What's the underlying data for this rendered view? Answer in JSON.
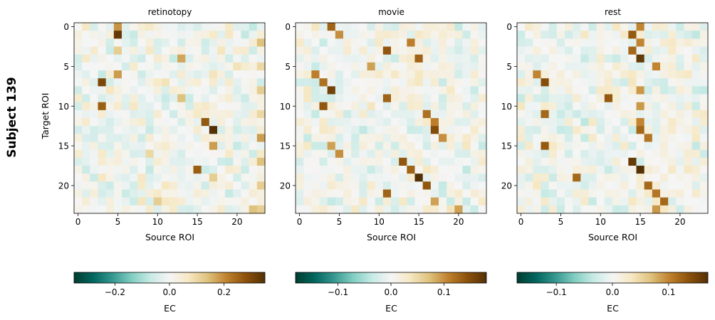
{
  "figure": {
    "row_label": "Subject 139",
    "ylabel": "Target ROI",
    "xlabel": "Source ROI",
    "colorbar_label": "EC"
  },
  "colormap": {
    "name": "BrBG_r",
    "stops": [
      "#003c30",
      "#01665e",
      "#35978f",
      "#80cdc1",
      "#c7eae5",
      "#f5f5f5",
      "#f6e8c3",
      "#dfc27d",
      "#bf812d",
      "#8c510a",
      "#543005"
    ]
  },
  "axis_ticks": {
    "x": [
      0,
      5,
      10,
      15,
      20
    ],
    "y": [
      0,
      5,
      10,
      15,
      20
    ]
  },
  "chart_data": [
    {
      "type": "heatmap",
      "title": "retinotopy",
      "xlabel": "Source ROI",
      "ylabel": "Target ROI",
      "n": 24,
      "vmin": -0.35,
      "vmax": 0.35,
      "colorbar_ticks": [
        -0.2,
        0.0,
        0.2
      ],
      "colorbar_tick_labels": [
        "−0.2",
        "0.0",
        "0.2"
      ],
      "seed": 139,
      "texture_scale": 0.1,
      "highlights": [
        [
          0,
          5,
          0.19
        ],
        [
          1,
          5,
          0.33
        ],
        [
          2,
          23,
          0.14
        ],
        [
          3,
          5,
          0.12
        ],
        [
          4,
          13,
          0.17
        ],
        [
          5,
          23,
          0.1
        ],
        [
          6,
          5,
          0.18
        ],
        [
          7,
          3,
          0.3
        ],
        [
          8,
          23,
          0.12
        ],
        [
          9,
          13,
          0.14
        ],
        [
          10,
          3,
          0.26
        ],
        [
          11,
          23,
          0.1
        ],
        [
          12,
          16,
          0.27
        ],
        [
          13,
          17,
          0.35
        ],
        [
          14,
          23,
          0.18
        ],
        [
          15,
          17,
          0.18
        ],
        [
          16,
          9,
          0.1
        ],
        [
          17,
          23,
          0.14
        ],
        [
          18,
          15,
          0.26
        ],
        [
          19,
          17,
          0.12
        ],
        [
          20,
          23,
          0.12
        ],
        [
          22,
          10,
          0.12
        ],
        [
          23,
          22,
          0.14
        ],
        [
          23,
          23,
          0.12
        ]
      ]
    },
    {
      "type": "heatmap",
      "title": "movie",
      "xlabel": "Source ROI",
      "ylabel": "",
      "n": 24,
      "vmin": -0.18,
      "vmax": 0.18,
      "colorbar_ticks": [
        -0.1,
        0.0,
        0.1
      ],
      "colorbar_tick_labels": [
        "−0.1",
        "0.0",
        "0.1"
      ],
      "seed": 2139,
      "texture_scale": 0.05,
      "highlights": [
        [
          0,
          4,
          0.13
        ],
        [
          1,
          5,
          0.1
        ],
        [
          2,
          14,
          0.11
        ],
        [
          3,
          11,
          0.14
        ],
        [
          4,
          15,
          0.13
        ],
        [
          5,
          9,
          0.09
        ],
        [
          6,
          2,
          0.11
        ],
        [
          7,
          3,
          0.12
        ],
        [
          8,
          4,
          0.16
        ],
        [
          9,
          11,
          0.13
        ],
        [
          10,
          3,
          0.14
        ],
        [
          11,
          16,
          0.12
        ],
        [
          12,
          17,
          0.11
        ],
        [
          13,
          17,
          0.15
        ],
        [
          14,
          18,
          0.1
        ],
        [
          15,
          4,
          0.09
        ],
        [
          16,
          5,
          0.1
        ],
        [
          17,
          13,
          0.14
        ],
        [
          18,
          14,
          0.13
        ],
        [
          19,
          15,
          0.18
        ],
        [
          20,
          16,
          0.14
        ],
        [
          21,
          11,
          0.13
        ],
        [
          22,
          17,
          0.09
        ],
        [
          23,
          20,
          0.09
        ]
      ]
    },
    {
      "type": "heatmap",
      "title": "rest",
      "xlabel": "Source ROI",
      "ylabel": "",
      "n": 24,
      "vmin": -0.17,
      "vmax": 0.17,
      "colorbar_ticks": [
        -0.1,
        0.0,
        0.1
      ],
      "colorbar_tick_labels": [
        "−0.1",
        "0.0",
        "0.1"
      ],
      "seed": 4139,
      "texture_scale": 0.05,
      "highlights": [
        [
          0,
          15,
          0.1
        ],
        [
          1,
          14,
          0.13
        ],
        [
          2,
          15,
          0.1
        ],
        [
          3,
          14,
          0.12
        ],
        [
          4,
          15,
          0.16
        ],
        [
          5,
          17,
          0.1
        ],
        [
          6,
          2,
          0.1
        ],
        [
          7,
          3,
          0.14
        ],
        [
          8,
          15,
          0.09
        ],
        [
          9,
          11,
          0.13
        ],
        [
          10,
          15,
          0.09
        ],
        [
          11,
          3,
          0.12
        ],
        [
          12,
          15,
          0.1
        ],
        [
          13,
          15,
          0.12
        ],
        [
          14,
          16,
          0.11
        ],
        [
          15,
          3,
          0.13
        ],
        [
          17,
          14,
          0.16
        ],
        [
          18,
          15,
          0.17
        ],
        [
          19,
          7,
          0.12
        ],
        [
          20,
          16,
          0.12
        ],
        [
          21,
          17,
          0.11
        ],
        [
          22,
          18,
          0.12
        ],
        [
          23,
          17,
          0.09
        ]
      ]
    }
  ]
}
